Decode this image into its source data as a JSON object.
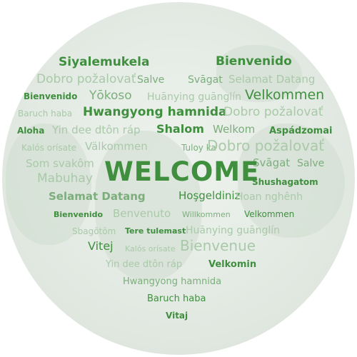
{
  "words": [
    "Siyalemukela",
    "Bienvenido",
    "Dobro požalovať",
    "Salve",
    "Svāgat",
    "Selamat Datang",
    "Bienvenido",
    "Yōkoso",
    "Huānying guānglín",
    "Velkommen",
    "Baruch haba",
    "Hwangyong hamnida",
    "Dobro požalovať",
    "Aloha",
    "Yin dee dtôn ráp",
    "Shalom",
    "Welkom",
    "Aspádzomai",
    "Kalós orísate",
    "Välkommen",
    "Tuloy ka",
    "Dobro požalovať",
    "Som svakôm",
    "Svāgat",
    "Salve",
    "Mabuhay",
    "WELCOME",
    "Shushagatom",
    "Selamat Datang",
    "Hoşgeldiniz",
    "Hoan nghênh",
    "Bienvenido",
    "Benvenuto",
    "Willkommen",
    "Velkommen",
    "Sbagōtōm",
    "Tere tulemast",
    "Huānying guānglín",
    "Vitej",
    "Kalós orísate",
    "Bienvenue",
    "Yin dee dtôn ráp",
    "Velkomin",
    "Hwangyong hamnida",
    "Baruch haba",
    "Vitaj"
  ]
}
